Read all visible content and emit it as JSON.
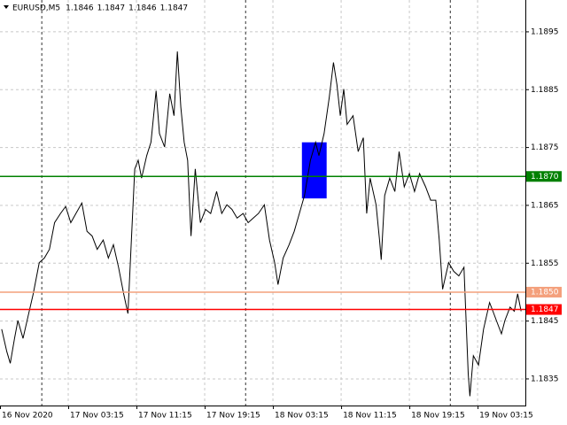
{
  "chart_data": {
    "type": "line",
    "title": "EURUSD,M5",
    "ohlc": [
      1.1846,
      1.1847,
      1.1846,
      1.1847
    ],
    "x": [
      0.2,
      0.8,
      1.2,
      1.7,
      2.1,
      2.7,
      3.3,
      3.9,
      4.6,
      5.2,
      5.8,
      6.4,
      7.1,
      7.7,
      8.3,
      8.9,
      9.6,
      10.2,
      10.8,
      11.4,
      12.1,
      12.7,
      13.3,
      13.9,
      14.5,
      15.0,
      15.4,
      15.8,
      16.2,
      16.6,
      17.2,
      17.7,
      18.3,
      18.7,
      19.3,
      19.9,
      20.4,
      20.8,
      21.2,
      21.6,
      22.0,
      22.4,
      22.9,
      23.5,
      24.1,
      24.7,
      25.4,
      26.0,
      26.6,
      27.2,
      27.8,
      28.5,
      29.1,
      29.7,
      30.3,
      31.0,
      31.6,
      32.2,
      32.6,
      33.2,
      33.9,
      34.5,
      35.1,
      35.7,
      36.4,
      37.0,
      37.4,
      38.0,
      38.6,
      39.1,
      39.5,
      39.9,
      40.3,
      40.7,
      41.4,
      42.0,
      42.6,
      43.0,
      43.4,
      44.1,
      44.5,
      44.7,
      45.1,
      45.7,
      46.3,
      46.8,
      47.4,
      48.0,
      48.6,
      49.2,
      49.9,
      50.5,
      51.1,
      51.5,
      51.9,
      52.6,
      53.2,
      53.8,
      54.4,
      54.9,
      55.1,
      55.5,
      56.1,
      56.7,
      57.4,
      57.8,
      58.2,
      58.8,
      59.2,
      59.8,
      60.3,
      60.7,
      61.1
    ],
    "values": [
      1.18436,
      1.18397,
      1.18377,
      1.1842,
      1.18451,
      1.1842,
      1.18459,
      1.18497,
      1.18551,
      1.18559,
      1.18574,
      1.1862,
      1.18636,
      1.18648,
      1.1862,
      1.18636,
      1.18654,
      1.18605,
      1.18597,
      1.18574,
      1.1859,
      1.18559,
      1.18582,
      1.18543,
      1.18497,
      1.18463,
      1.1859,
      1.18713,
      1.18728,
      1.18697,
      1.18736,
      1.18759,
      1.18848,
      1.18774,
      1.18751,
      1.18843,
      1.18805,
      1.18916,
      1.1882,
      1.18759,
      1.18728,
      1.18597,
      1.18713,
      1.1862,
      1.18643,
      1.18636,
      1.18674,
      1.18636,
      1.18651,
      1.18643,
      1.18628,
      1.18636,
      1.1862,
      1.18628,
      1.18636,
      1.18651,
      1.1859,
      1.18551,
      1.18513,
      1.18559,
      1.18582,
      1.18605,
      1.18636,
      1.18667,
      1.18728,
      1.18759,
      1.18736,
      1.18774,
      1.18836,
      1.18897,
      1.18859,
      1.18805,
      1.18851,
      1.1879,
      1.18805,
      1.18743,
      1.18767,
      1.18636,
      1.18697,
      1.18651,
      1.1859,
      1.18556,
      1.18667,
      1.18697,
      1.18674,
      1.18743,
      1.18682,
      1.18705,
      1.18674,
      1.18705,
      1.18682,
      1.18659,
      1.18659,
      1.1859,
      1.18505,
      1.18551,
      1.18536,
      1.18528,
      1.18543,
      1.18359,
      1.1832,
      1.1839,
      1.18374,
      1.18436,
      1.18482,
      1.18467,
      1.18451,
      1.18428,
      1.18451,
      1.18474,
      1.18467,
      1.18497,
      1.18467
    ],
    "color": "#000000",
    "xlim": [
      0,
      61.6
    ],
    "xticks": [
      {
        "value": 0,
        "label": "16 Nov 2020"
      },
      {
        "value": 8,
        "label": "17 Nov 03:15"
      },
      {
        "value": 16,
        "label": "17 Nov 11:15"
      },
      {
        "value": 24,
        "label": "17 Nov 19:15"
      },
      {
        "value": 32,
        "label": "18 Nov 03:15"
      },
      {
        "value": 40,
        "label": "18 Nov 11:15"
      },
      {
        "value": 48,
        "label": "18 Nov 19:15"
      },
      {
        "value": 56,
        "label": "19 Nov 03:15"
      }
    ],
    "day_separators": [
      4.9,
      28.8,
      52.8
    ],
    "ylim": [
      1.18304,
      1.19005
    ],
    "yticks": [
      1.1835,
      1.1845,
      1.1855,
      1.1865,
      1.1875,
      1.1885,
      1.1895
    ],
    "grid": true,
    "hlines": [
      {
        "value": 1.187,
        "label": "1.1870",
        "color": "#008000"
      },
      {
        "value": 1.185,
        "label": "1.1850",
        "color": "#f4a07c"
      },
      {
        "value": 1.1847,
        "label": "1.1847",
        "color": "#ff0000"
      }
    ],
    "box": {
      "x": [
        35.4,
        38.3
      ],
      "y": [
        1.18662,
        1.18759
      ],
      "color": "#0000ff"
    }
  }
}
